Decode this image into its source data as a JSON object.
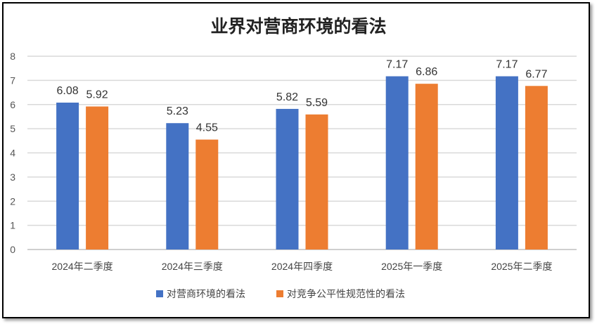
{
  "chart_data": {
    "type": "bar",
    "title": "业界对营商环境的看法",
    "categories": [
      "2024年二季度",
      "2024年三季度",
      "2024年四季度",
      "2025年一季度",
      "2025年二季度"
    ],
    "series": [
      {
        "name": "对营商环境的看法",
        "color": "#4472C4",
        "values": [
          6.08,
          5.23,
          5.82,
          7.17,
          7.17
        ]
      },
      {
        "name": "对竞争公平性规范性的看法",
        "color": "#ED7D31",
        "values": [
          5.92,
          4.55,
          5.59,
          6.86,
          6.77
        ]
      }
    ],
    "ylim": [
      0,
      8
    ],
    "yticks": [
      0,
      1,
      2,
      3,
      4,
      5,
      6,
      7,
      8
    ],
    "grid": true,
    "legend": "bottom",
    "xlabel": "",
    "ylabel": ""
  }
}
